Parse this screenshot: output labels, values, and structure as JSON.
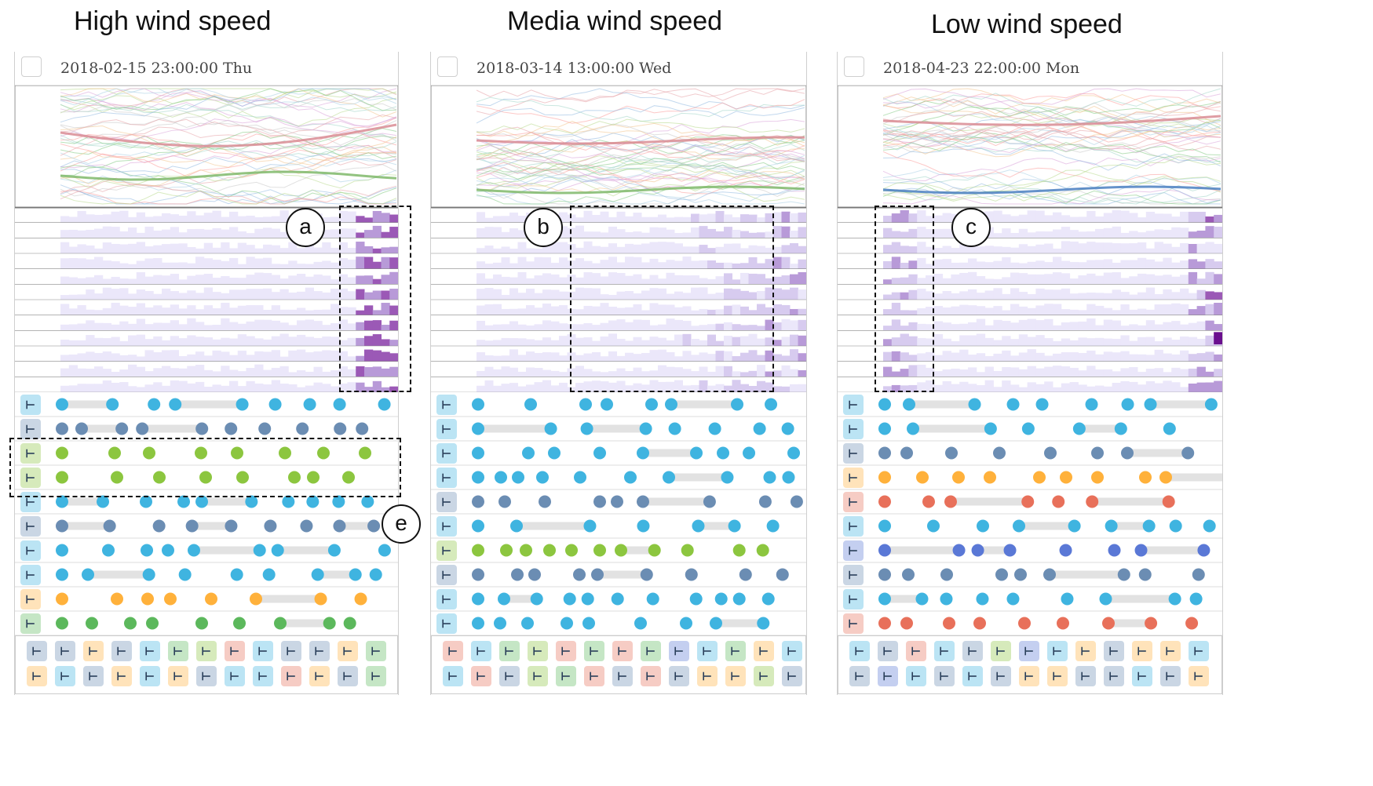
{
  "headings": {
    "high": "High wind speed",
    "media": "Media wind speed",
    "low": "Low wind speed"
  },
  "panels": [
    {
      "id": "high",
      "timestamp": "2018-02-15 23:00:00 Thu",
      "callout": "a",
      "line_colors": [
        "#e6a0a6",
        "#7fc97f",
        "#8fb8e0",
        "#b7d88a",
        "#d9a0d9",
        "#9fd3c7",
        "#f2c38b",
        "#c7c7c7",
        "#a6cee3",
        "#fb9a99"
      ],
      "emphasis": [
        {
          "color": "#d98c94",
          "trend": "dip"
        },
        {
          "color": "#7fb86a",
          "trend": "flat"
        }
      ],
      "heat_rows": 12,
      "events": [
        {
          "icon": "#3fb4e0",
          "dots": "#3fb4e0"
        },
        {
          "icon": "#6b8db3",
          "dots": "#6b8db3"
        },
        {
          "icon": "#8cc63f",
          "dots": "#8cc63f"
        },
        {
          "icon": "#8cc63f",
          "dots": "#8cc63f"
        },
        {
          "icon": "#3fb4e0",
          "dots": "#3fb4e0"
        },
        {
          "icon": "#6b8db3",
          "dots": "#6b8db3"
        },
        {
          "icon": "#3fb4e0",
          "dots": "#3fb4e0"
        },
        {
          "icon": "#3fb4e0",
          "dots": "#3fb4e0"
        },
        {
          "icon": "#ffb13b",
          "dots": "#ffb13b"
        },
        {
          "icon": "#5cb85c",
          "dots": "#5cb85c"
        }
      ],
      "legend": [
        [
          "#6b8db3",
          "#6b8db3",
          "#ffb13b",
          "#6b8db3",
          "#3fb4e0",
          "#5cb85c",
          "#8cc63f",
          "#e8705a",
          "#3fb4e0",
          "#6b8db3",
          "#6b8db3",
          "#ffb13b",
          "#5cb85c"
        ],
        [
          "#ffb13b",
          "#3fb4e0",
          "#6b8db3",
          "#ffb13b",
          "#3fb4e0",
          "#ffb13b",
          "#6b8db3",
          "#3fb4e0",
          "#3fb4e0",
          "#e8705a",
          "#ffb13b",
          "#6b8db3",
          "#5cb85c"
        ]
      ]
    },
    {
      "id": "media",
      "timestamp": "2018-03-14 13:00:00 Wed",
      "callout": "b",
      "line_colors": [
        "#e6a0a6",
        "#7fc97f",
        "#8fb8e0",
        "#b7d88a",
        "#d9a0d9",
        "#9fd3c7",
        "#f2c38b",
        "#c7c7c7",
        "#a6cee3",
        "#fb9a99"
      ],
      "emphasis": [
        {
          "color": "#d98c94",
          "trend": "flat"
        },
        {
          "color": "#7fb86a",
          "trend": "low"
        }
      ],
      "heat_rows": 12,
      "events": [
        {
          "icon": "#3fb4e0",
          "dots": "#3fb4e0"
        },
        {
          "icon": "#3fb4e0",
          "dots": "#3fb4e0"
        },
        {
          "icon": "#3fb4e0",
          "dots": "#3fb4e0"
        },
        {
          "icon": "#3fb4e0",
          "dots": "#3fb4e0"
        },
        {
          "icon": "#6b8db3",
          "dots": "#6b8db3"
        },
        {
          "icon": "#3fb4e0",
          "dots": "#3fb4e0"
        },
        {
          "icon": "#8cc63f",
          "dots": "#8cc63f"
        },
        {
          "icon": "#6b8db3",
          "dots": "#6b8db3"
        },
        {
          "icon": "#3fb4e0",
          "dots": "#3fb4e0"
        },
        {
          "icon": "#3fb4e0",
          "dots": "#3fb4e0"
        }
      ],
      "legend": [
        [
          "#e8705a",
          "#3fb4e0",
          "#5cb85c",
          "#8cc63f",
          "#e8705a",
          "#5cb85c",
          "#e8705a",
          "#5cb85c",
          "#5a78d6",
          "#3fb4e0",
          "#5cb85c",
          "#ffb13b",
          "#3fb4e0"
        ],
        [
          "#3fb4e0",
          "#e8705a",
          "#6b8db3",
          "#8cc63f",
          "#5cb85c",
          "#e8705a",
          "#6b8db3",
          "#e8705a",
          "#6b8db3",
          "#ffb13b",
          "#ffb13b",
          "#8cc63f",
          "#6b8db3"
        ]
      ]
    },
    {
      "id": "low",
      "timestamp": "2018-04-23 22:00:00 Mon",
      "callout": "c",
      "line_colors": [
        "#e6a0a6",
        "#7fc97f",
        "#8fb8e0",
        "#b7d88a",
        "#d9a0d9",
        "#9fd3c7",
        "#f2c38b",
        "#c7c7c7",
        "#a6cee3",
        "#fb9a99"
      ],
      "emphasis": [
        {
          "color": "#d98c94",
          "trend": "high"
        },
        {
          "color": "#4a7fc1",
          "trend": "low"
        }
      ],
      "heat_rows": 12,
      "events": [
        {
          "icon": "#3fb4e0",
          "dots": "#3fb4e0"
        },
        {
          "icon": "#3fb4e0",
          "dots": "#3fb4e0"
        },
        {
          "icon": "#6b8db3",
          "dots": "#6b8db3"
        },
        {
          "icon": "#ffb13b",
          "dots": "#ffb13b"
        },
        {
          "icon": "#e8705a",
          "dots": "#e8705a"
        },
        {
          "icon": "#3fb4e0",
          "dots": "#3fb4e0"
        },
        {
          "icon": "#5a78d6",
          "dots": "#5a78d6"
        },
        {
          "icon": "#6b8db3",
          "dots": "#6b8db3"
        },
        {
          "icon": "#3fb4e0",
          "dots": "#3fb4e0"
        },
        {
          "icon": "#e8705a",
          "dots": "#e8705a"
        }
      ],
      "legend": [
        [
          "#3fb4e0",
          "#6b8db3",
          "#e8705a",
          "#3fb4e0",
          "#6b8db3",
          "#8cc63f",
          "#5a78d6",
          "#3fb4e0",
          "#ffb13b",
          "#6b8db3",
          "#ffb13b",
          "#ffb13b",
          "#3fb4e0"
        ],
        [
          "#6b8db3",
          "#5a78d6",
          "#3fb4e0",
          "#6b8db3",
          "#3fb4e0",
          "#6b8db3",
          "#ffb13b",
          "#ffb13b",
          "#6b8db3",
          "#6b8db3",
          "#3fb4e0",
          "#6b8db3",
          "#ffb13b"
        ]
      ]
    }
  ],
  "annotation_e": "e"
}
